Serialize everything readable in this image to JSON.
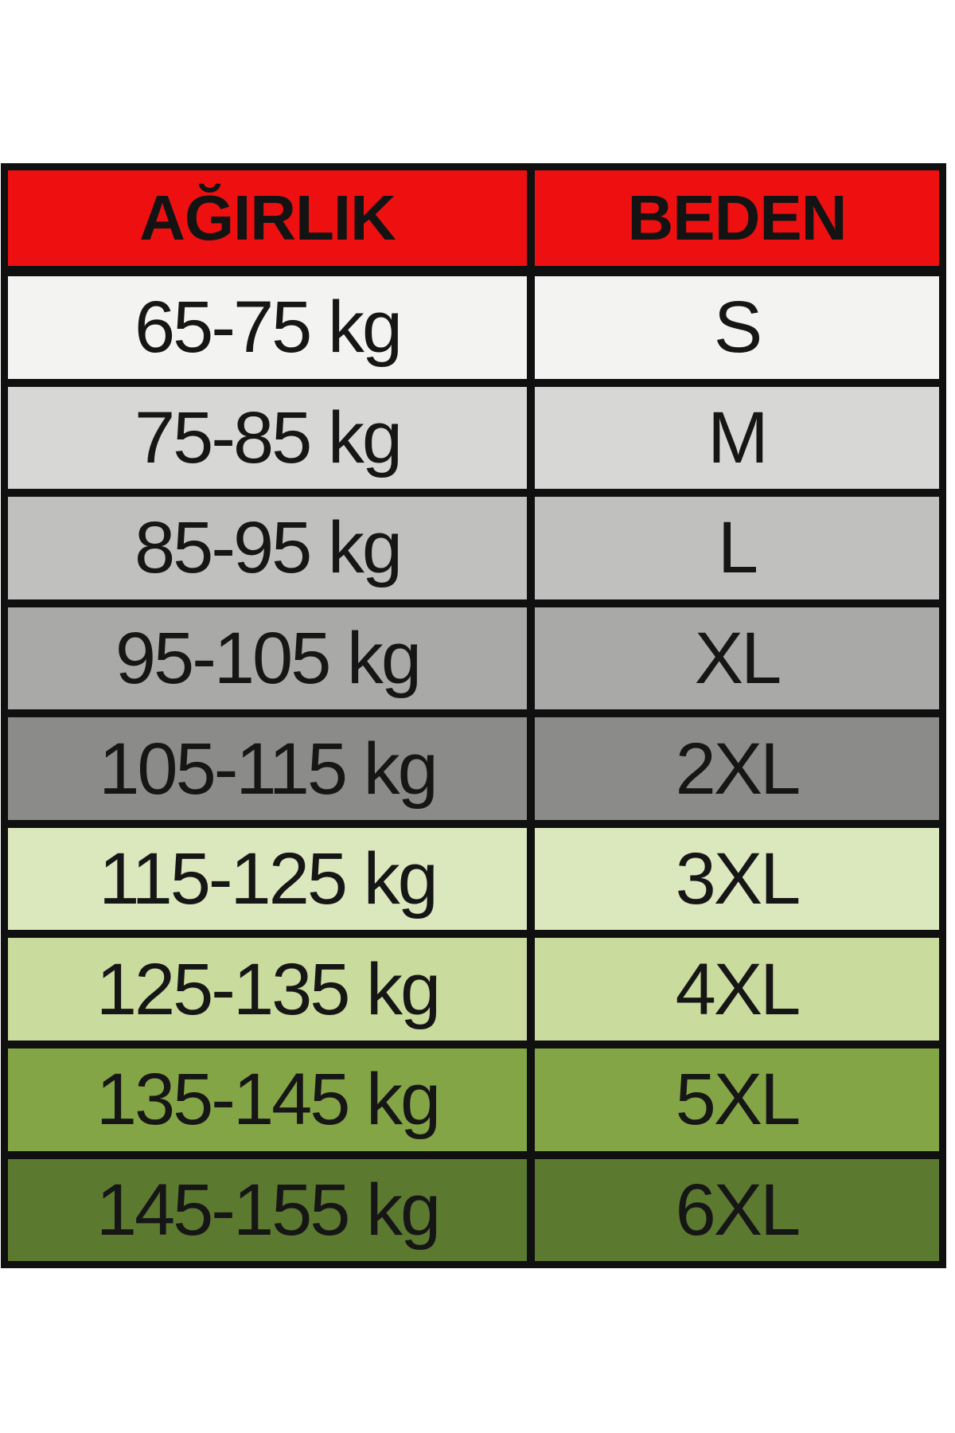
{
  "page": {
    "background": "#ffffff"
  },
  "table": {
    "border_color": "#101010",
    "text_color": "#161616",
    "header": {
      "bg": "#ee1010",
      "weight_label": "AĞIRLIK",
      "size_label": "BEDEN"
    },
    "rows": [
      {
        "weight": "65-75 kg",
        "size": "S",
        "bg": "#f3f3f1"
      },
      {
        "weight": "75-85 kg",
        "size": "M",
        "bg": "#d7d7d6"
      },
      {
        "weight": "85-95 kg",
        "size": "L",
        "bg": "#c0c0bf"
      },
      {
        "weight": "95-105 kg",
        "size": "XL",
        "bg": "#a9a9a7"
      },
      {
        "weight": "105-115 kg",
        "size": "2XL",
        "bg": "#8b8b89"
      },
      {
        "weight": "115-125 kg",
        "size": "3XL",
        "bg": "#dbe7bd"
      },
      {
        "weight": "125-135 kg",
        "size": "4XL",
        "bg": "#c9db9d"
      },
      {
        "weight": "135-145 kg",
        "size": "5XL",
        "bg": "#84a546"
      },
      {
        "weight": "145-155 kg",
        "size": "6XL",
        "bg": "#5c7930"
      }
    ]
  },
  "chart_data": {
    "type": "table",
    "title": "",
    "columns": [
      "AĞIRLIK",
      "BEDEN"
    ],
    "rows": [
      [
        "65-75 kg",
        "S"
      ],
      [
        "75-85 kg",
        "M"
      ],
      [
        "85-95 kg",
        "L"
      ],
      [
        "95-105 kg",
        "XL"
      ],
      [
        "105-115 kg",
        "2XL"
      ],
      [
        "115-125 kg",
        "3XL"
      ],
      [
        "125-135 kg",
        "4XL"
      ],
      [
        "135-145 kg",
        "5XL"
      ],
      [
        "145-155 kg",
        "6XL"
      ]
    ],
    "header_color": "#ee1010",
    "row_colors": [
      "#f3f3f1",
      "#d7d7d6",
      "#c0c0bf",
      "#a9a9a7",
      "#8b8b89",
      "#dbe7bd",
      "#c9db9d",
      "#84a546",
      "#5c7930"
    ],
    "grid": true,
    "legend_position": "none"
  }
}
